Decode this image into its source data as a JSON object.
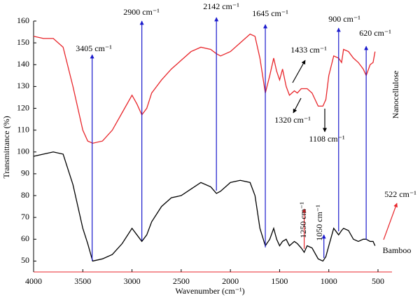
{
  "chart_data": {
    "type": "line",
    "xlabel": "Wavenumber (cm⁻¹)",
    "ylabel": "Transmittance (%)",
    "xlim": [
      4000,
      500
    ],
    "ylim": [
      45,
      160
    ],
    "xticks": [
      4000,
      3500,
      3000,
      2500,
      2000,
      1500,
      1000,
      500
    ],
    "yticks": [
      50,
      60,
      70,
      80,
      90,
      100,
      110,
      120,
      130,
      140,
      150,
      160
    ],
    "x": [
      4000,
      3900,
      3800,
      3700,
      3600,
      3500,
      3450,
      3400,
      3300,
      3200,
      3100,
      3000,
      2950,
      2900,
      2850,
      2800,
      2700,
      2600,
      2500,
      2400,
      2300,
      2200,
      2142,
      2100,
      2000,
      1900,
      1800,
      1750,
      1700,
      1645,
      1600,
      1560,
      1530,
      1500,
      1470,
      1433,
      1400,
      1350,
      1320,
      1280,
      1250,
      1220,
      1170,
      1108,
      1060,
      1030,
      1000,
      950,
      900,
      870,
      850,
      800,
      750,
      700,
      650,
      620,
      580,
      550,
      530
    ],
    "series": [
      {
        "name": "Nanocellulose",
        "color": "#e8262b",
        "values": [
          153,
          152,
          152,
          148,
          130,
          110,
          105,
          104,
          105,
          110,
          118,
          126,
          122,
          117,
          120,
          127,
          133,
          138,
          142,
          146,
          148,
          147,
          145,
          144,
          146,
          150,
          154,
          153,
          143,
          127,
          135,
          143,
          137,
          133,
          138,
          130,
          126,
          128,
          127,
          129,
          129,
          129,
          127,
          121,
          121,
          124,
          135,
          144,
          143,
          141,
          147,
          146,
          143,
          141,
          138,
          135,
          140,
          141,
          146
        ]
      },
      {
        "name": "Bamboo",
        "color": "#000000",
        "values": [
          98,
          99,
          100,
          99,
          85,
          65,
          58,
          50,
          51,
          53,
          58,
          65,
          62,
          59,
          62,
          68,
          75,
          79,
          80,
          83,
          86,
          84,
          81,
          82,
          86,
          87,
          86,
          80,
          65,
          57,
          60,
          65,
          60,
          57,
          59,
          60,
          57,
          59,
          58,
          56,
          54,
          57,
          56,
          51,
          50,
          52,
          57,
          65,
          62,
          64,
          65,
          64,
          60,
          59,
          60,
          60,
          59,
          59,
          57
        ]
      }
    ],
    "annotations": [
      {
        "text": "3405 cm⁻¹",
        "x": 3405,
        "color": "#1a1acc"
      },
      {
        "text": "2900 cm⁻¹",
        "x": 2900,
        "color": "#1a1acc"
      },
      {
        "text": "2142 cm⁻¹",
        "x": 2142,
        "color": "#1a1acc"
      },
      {
        "text": "1645 cm⁻¹",
        "x": 1645,
        "color": "#1a1acc"
      },
      {
        "text": "900 cm⁻¹",
        "x": 900,
        "color": "#1a1acc"
      },
      {
        "text": "620 cm⁻¹",
        "x": 620,
        "color": "#1a1acc"
      },
      {
        "text": "1050 cm⁻¹",
        "x": 1050,
        "color": "#1a1acc"
      },
      {
        "text": "1250 cm⁻¹",
        "x": 1250,
        "color": "#e8262b"
      },
      {
        "text": "1433 cm⁻¹",
        "x": 1433,
        "color": "#000000"
      },
      {
        "text": "1320 cm⁻¹",
        "x": 1320,
        "color": "#000000"
      },
      {
        "text": "1108 cm⁻¹",
        "x": 1108,
        "color": "#000000"
      },
      {
        "text": "522 cm⁻¹",
        "x": 522,
        "color": "#e8262b"
      }
    ]
  }
}
